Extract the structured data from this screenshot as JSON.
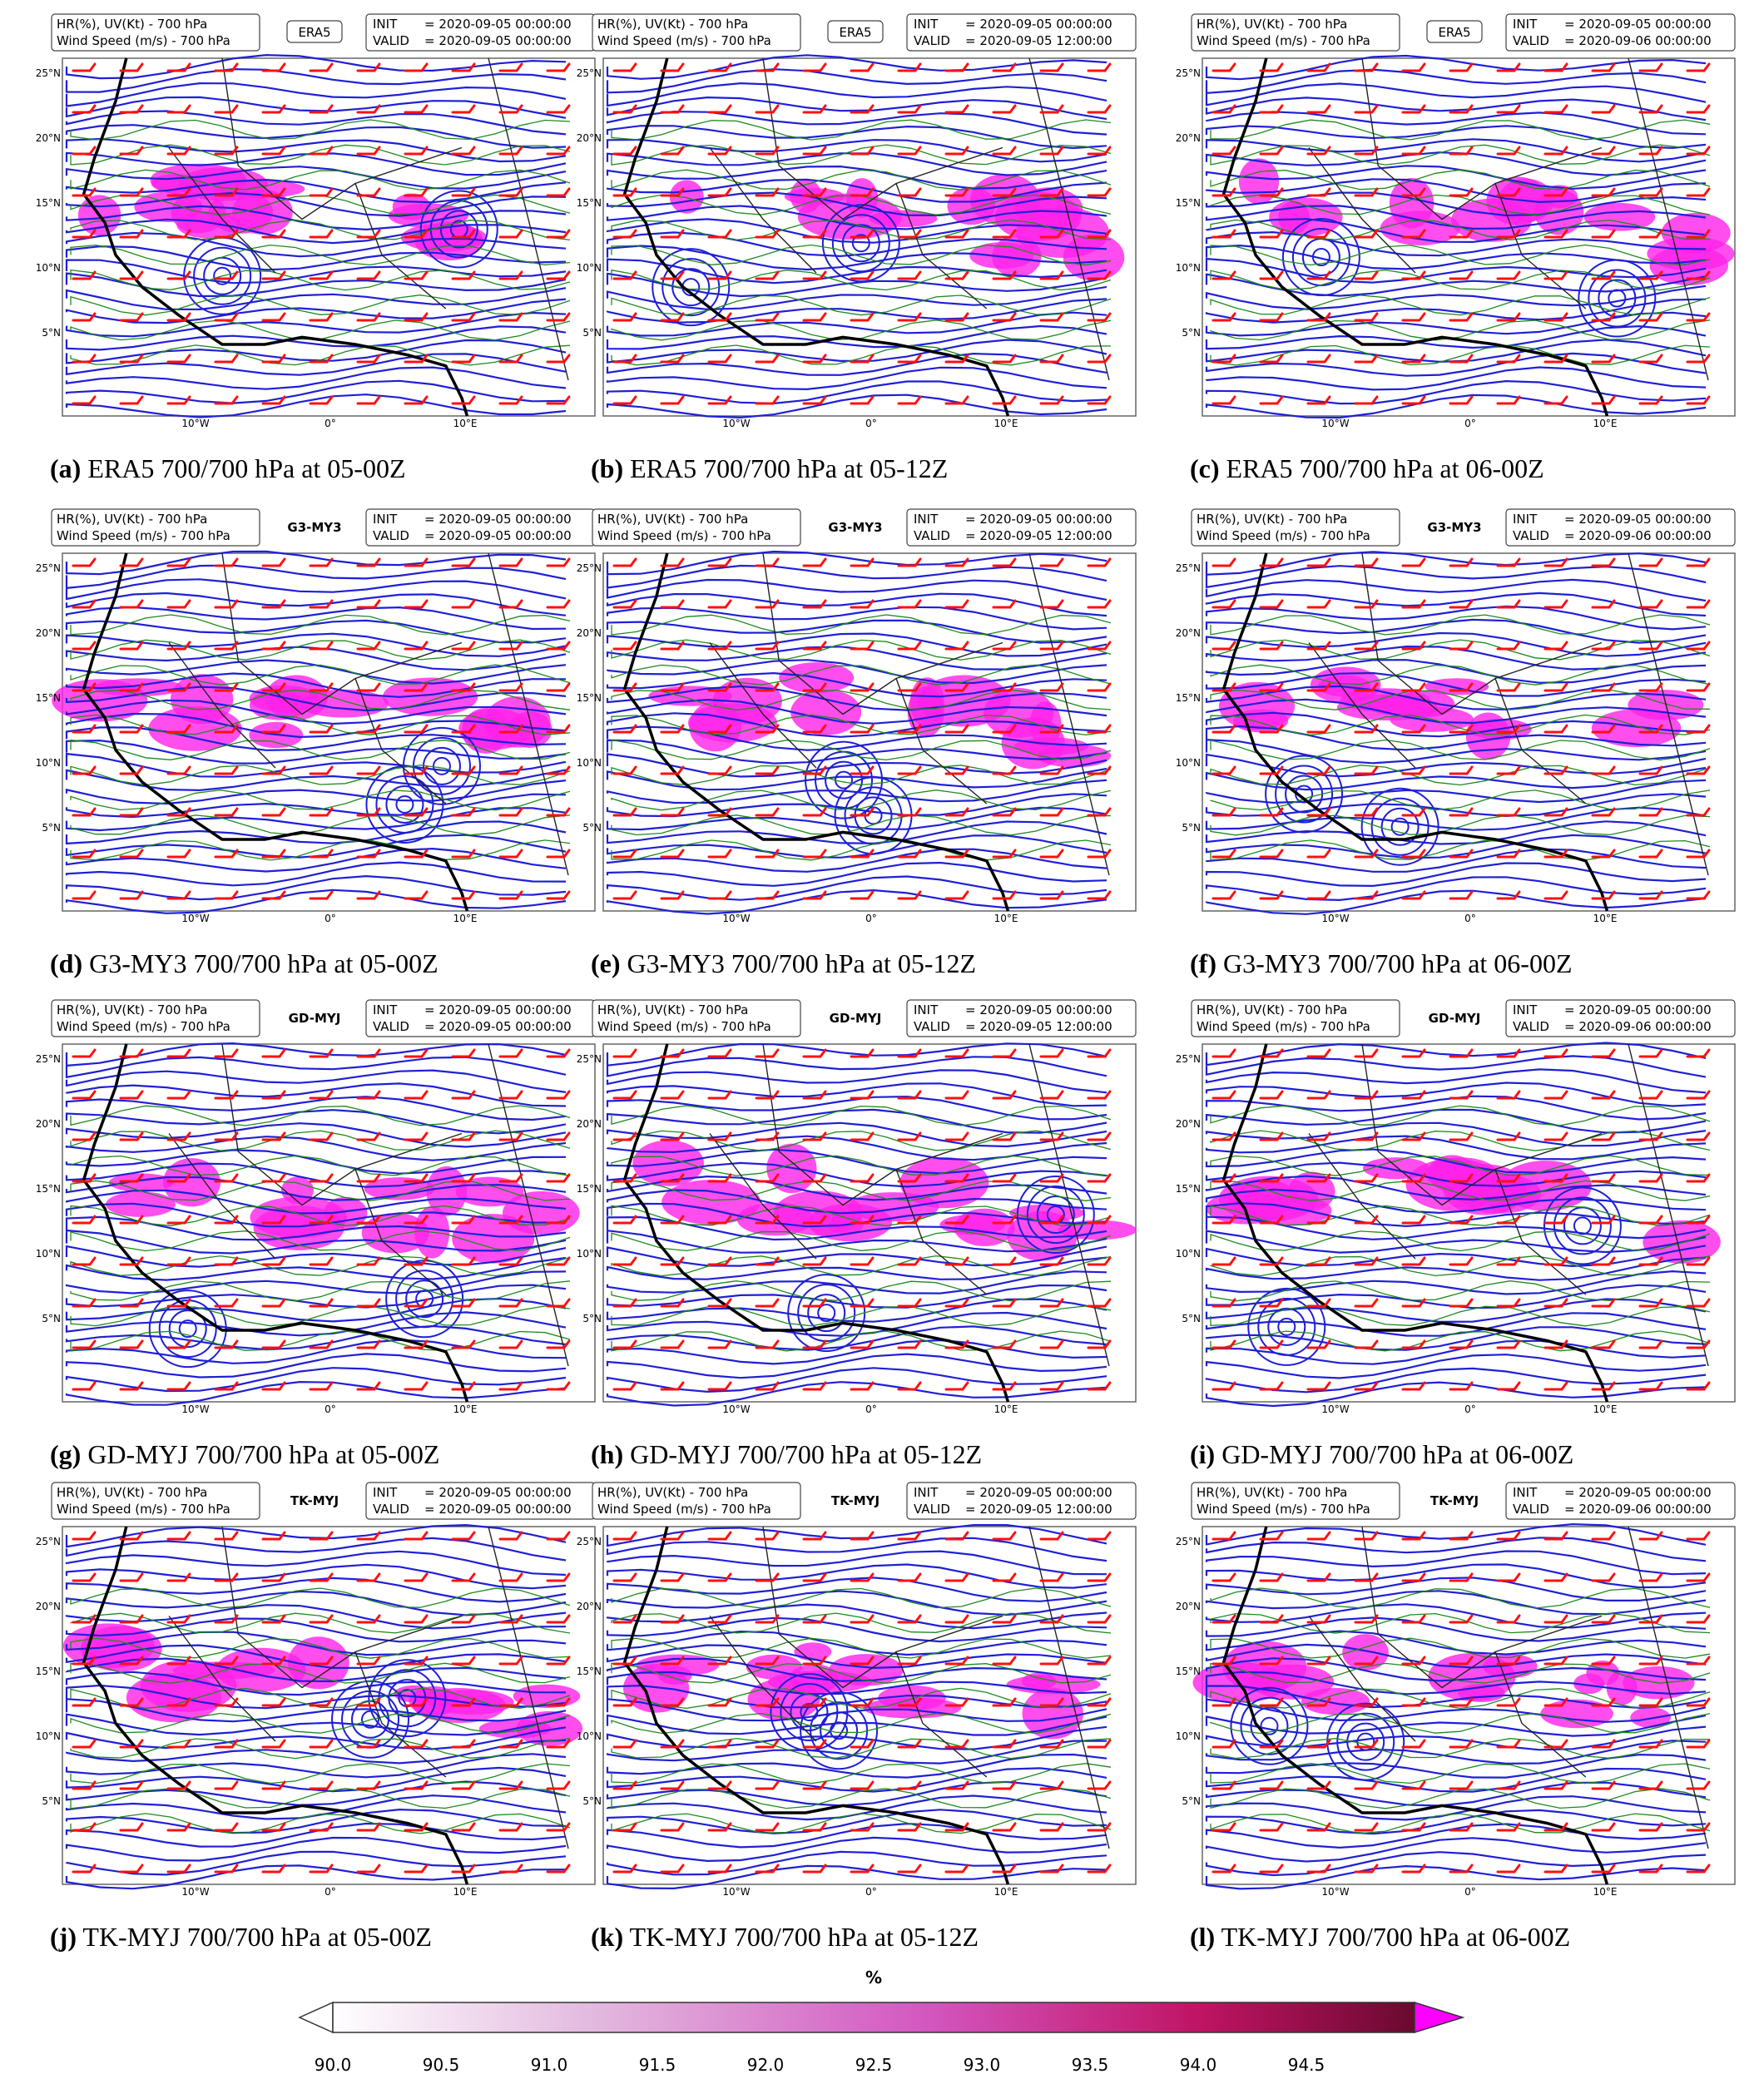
{
  "map_header": {
    "var_line1": "HR(%), UV(Kt) - 700 hPa",
    "var_line2": "Wind Speed (m/s) - 700 hPa",
    "init_label": "INIT",
    "valid_label": "VALID",
    "init_value": "= 2020-09-05 00:00:00"
  },
  "axis_labels": {
    "lat": [
      "25°N",
      "20°N",
      "15°N",
      "10°N",
      "5°N"
    ],
    "lon": [
      "10°W",
      "0°",
      "10°E"
    ]
  },
  "panels": [
    {
      "id": "a",
      "model": "ERA5",
      "valid": "= 2020-09-05 00:00:00",
      "caption_letter": "(a)",
      "caption_text": "ERA5 700/700 hPa at 05-00Z"
    },
    {
      "id": "b",
      "model": "ERA5",
      "valid": "= 2020-09-05 12:00:00",
      "caption_letter": "(b)",
      "caption_text": "ERA5 700/700 hPa at 05-12Z"
    },
    {
      "id": "c",
      "model": "ERA5",
      "valid": "= 2020-09-06 00:00:00",
      "caption_letter": "(c)",
      "caption_text": "ERA5 700/700 hPa at 06-00Z"
    },
    {
      "id": "d",
      "model": "G3-MY3",
      "valid": "= 2020-09-05 00:00:00",
      "caption_letter": "(d)",
      "caption_text": "G3-MY3 700/700 hPa at 05-00Z"
    },
    {
      "id": "e",
      "model": "G3-MY3",
      "valid": "= 2020-09-05 12:00:00",
      "caption_letter": "(e)",
      "caption_text": "G3-MY3 700/700 hPa at 05-12Z"
    },
    {
      "id": "f",
      "model": "G3-MY3",
      "valid": "= 2020-09-06 00:00:00",
      "caption_letter": "(f)",
      "caption_text": "G3-MY3 700/700 hPa at 06-00Z"
    },
    {
      "id": "g",
      "model": "GD-MYJ",
      "valid": "= 2020-09-05 00:00:00",
      "caption_letter": "(g)",
      "caption_text": "GD-MYJ 700/700 hPa at 05-00Z"
    },
    {
      "id": "h",
      "model": "GD-MYJ",
      "valid": "= 2020-09-05 12:00:00",
      "caption_letter": "(h)",
      "caption_text": "GD-MYJ 700/700 hPa at 05-12Z"
    },
    {
      "id": "i",
      "model": "GD-MYJ",
      "valid": "= 2020-09-06 00:00:00",
      "caption_letter": "(i)",
      "caption_text": "GD-MYJ 700/700 hPa at 06-00Z"
    },
    {
      "id": "j",
      "model": "TK-MYJ",
      "valid": "= 2020-09-05 00:00:00",
      "caption_letter": "(j)",
      "caption_text": "TK-MYJ 700/700 hPa at 05-00Z"
    },
    {
      "id": "k",
      "model": "TK-MYJ",
      "valid": "= 2020-09-05 12:00:00",
      "caption_letter": "(k)",
      "caption_text": "TK-MYJ 700/700 hPa at 05-12Z"
    },
    {
      "id": "l",
      "model": "TK-MYJ",
      "valid": "= 2020-09-06 00:00:00",
      "caption_letter": "(l)",
      "caption_text": "TK-MYJ 700/700 hPa at 06-00Z"
    }
  ],
  "colorbar": {
    "unit": "%",
    "ticks": [
      "90.0",
      "90.5",
      "91.0",
      "91.5",
      "92.0",
      "92.5",
      "93.0",
      "93.5",
      "94.0",
      "94.5"
    ],
    "min": 90.0,
    "max": 95.0,
    "colors": {
      "low": "#ffffff",
      "mid": "#d36bc8",
      "high": "#7a0a3a",
      "over": "#ff00ff"
    }
  },
  "colors": {
    "streamline": "#1f1fd6",
    "wind_barb": "#ff1010",
    "contour": "#1e8a1e",
    "humidity": "#ff22e8",
    "coastline": "#000000"
  }
}
